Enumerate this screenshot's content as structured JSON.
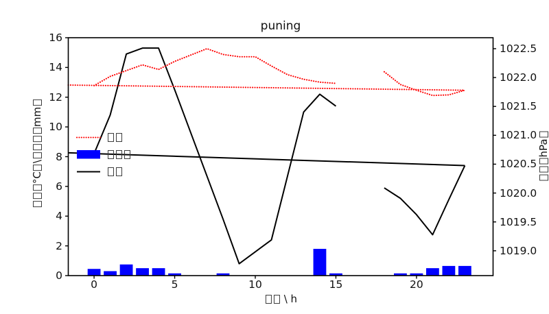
{
  "chart_data": {
    "type": "combo",
    "title": "puning",
    "xlabel": "□□ \\ h",
    "ylabel_left": "□□□°C□\\□□□□mm□",
    "ylabel_right": "□□□hPa□",
    "grid": false,
    "xlim": [
      -1.6,
      24.75
    ],
    "ylim_left": [
      0,
      16
    ],
    "ylim_right": [
      1018.57,
      1022.69
    ],
    "x_ticks": [
      "0",
      "5",
      "10",
      "15",
      "20"
    ],
    "x_tick_values": [
      0,
      5,
      10,
      15,
      20
    ],
    "y_ticks_left": [
      "0",
      "2",
      "4",
      "6",
      "8",
      "10",
      "12",
      "14",
      "16"
    ],
    "y_tick_values_left": [
      0,
      2,
      4,
      6,
      8,
      10,
      12,
      14,
      16
    ],
    "y_ticks_right": [
      "1019.0",
      "1019.5",
      "1020.0",
      "1020.5",
      "1021.0",
      "1021.5",
      "1022.0",
      "1022.5"
    ],
    "y_tick_values_right": [
      1019.0,
      1019.5,
      1020.0,
      1020.5,
      1021.0,
      1021.5,
      1022.0,
      1022.5
    ],
    "legend": {
      "position": "upper-left-inside",
      "frame": false,
      "items": [
        {
          "label": "□□",
          "swatch": "red-dotted-line"
        },
        {
          "label": "□□□",
          "swatch": "blue-bar-patch"
        },
        {
          "label": "□□",
          "swatch": "black-solid-line"
        }
      ]
    },
    "series": [
      {
        "name": "precipitation-bars",
        "type": "bar",
        "axis": "left",
        "color": "#0000ff",
        "bar_width": 0.8,
        "x": [
          0,
          1,
          2,
          3,
          4,
          5,
          6,
          7,
          8,
          9,
          10,
          11,
          12,
          13,
          14,
          15,
          16,
          17,
          18,
          19,
          20,
          21,
          22,
          23
        ],
        "values": [
          0.45,
          0.3,
          0.75,
          0.5,
          0.5,
          0.15,
          0,
          0,
          0.15,
          0,
          0,
          0,
          0,
          0,
          1.8,
          0.15,
          0,
          0,
          0,
          0.15,
          0.15,
          0.5,
          0.65,
          0.65
        ]
      },
      {
        "name": "temperature-line",
        "type": "line",
        "axis": "left",
        "color": "#000000",
        "style": "solid",
        "segments": [
          [
            [
              18,
              5.9
            ],
            [
              19,
              5.2
            ],
            [
              20,
              4.1
            ],
            [
              21,
              2.75
            ],
            [
              22,
              5.1
            ],
            [
              23,
              7.4
            ]
          ],
          [
            [
              0,
              8.2
            ],
            [
              1,
              10.8
            ],
            [
              2,
              14.9
            ],
            [
              3,
              15.3
            ],
            [
              4,
              15.3
            ],
            [
              5,
              12.5
            ],
            [
              6,
              9.6
            ],
            [
              7,
              6.7
            ],
            [
              8,
              3.8
            ],
            [
              9,
              0.8
            ],
            [
              10,
              1.6
            ],
            [
              11,
              2.4
            ],
            [
              12,
              6.7
            ],
            [
              13,
              11.0
            ],
            [
              14,
              12.2
            ],
            [
              15,
              11.4
            ]
          ],
          [
            [
              -1.6,
              8.26
            ],
            [
              23,
              7.4
            ]
          ]
        ]
      },
      {
        "name": "pressure-line",
        "type": "line",
        "axis": "right",
        "color": "#ff0000",
        "style": "dotted",
        "segments": [
          [
            [
              18,
              1022.1
            ],
            [
              19,
              1021.88
            ],
            [
              20,
              1021.78
            ],
            [
              21,
              1021.69
            ],
            [
              22,
              1021.7
            ],
            [
              23,
              1021.78
            ]
          ],
          [
            [
              0,
              1021.86
            ],
            [
              1,
              1022.02
            ],
            [
              2,
              1022.12
            ],
            [
              3,
              1022.22
            ],
            [
              4,
              1022.14
            ],
            [
              5,
              1022.28
            ],
            [
              6,
              1022.39
            ],
            [
              7,
              1022.5
            ],
            [
              8,
              1022.4
            ],
            [
              9,
              1022.36
            ],
            [
              10,
              1022.36
            ],
            [
              11,
              1022.2
            ],
            [
              12,
              1022.05
            ],
            [
              13,
              1021.97
            ],
            [
              14,
              1021.92
            ],
            [
              15,
              1021.9
            ]
          ],
          [
            [
              -1.6,
              1021.87
            ],
            [
              23,
              1021.78
            ]
          ]
        ]
      }
    ]
  }
}
